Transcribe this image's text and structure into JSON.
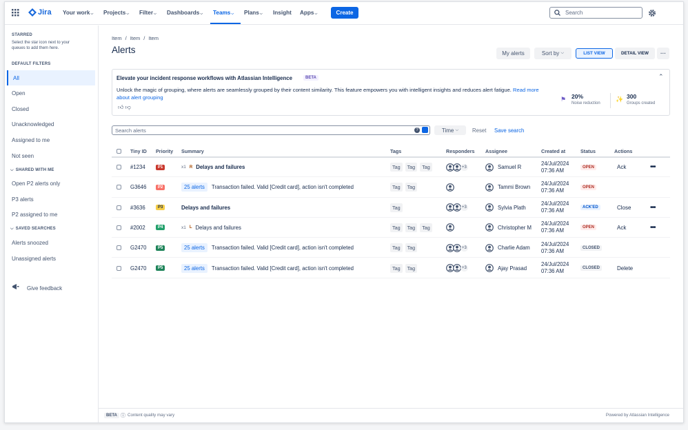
{
  "nav": {
    "product": "Jira",
    "items": [
      "Your work",
      "Projects",
      "Filter",
      "Dashboards",
      "Teams",
      "Plans",
      "Insight",
      "Apps"
    ],
    "create": "Create",
    "search": "Search"
  },
  "sidebar": {
    "starred": {
      "heading": "STARRED",
      "hint": "Select the star icon next to your queues to add them here."
    },
    "sections": [
      {
        "heading": "DEFAULT FILTERS",
        "items": [
          "All",
          "Open",
          "Closed",
          "Unacknowledged",
          "Assigned to me",
          "Not seen"
        ]
      },
      {
        "heading": "SHARED WITH ME",
        "items": [
          "Open P2 alerts only",
          "P3 alerts",
          "P2 assigned to me"
        ]
      },
      {
        "heading": "SAVED SEARCHES",
        "items": [
          "Alerts snoozed",
          "Unassigned alerts"
        ]
      }
    ],
    "feedback": "Give feedback"
  },
  "header": {
    "breadcrumbs": [
      "Item",
      "Item",
      "Item"
    ],
    "title": "Alerts",
    "buttons": {
      "my_alerts": "My alerts",
      "sort": "Sort by",
      "list_view": "LIST VIEW",
      "detail_view": "DETAIL VIEW"
    }
  },
  "banner": {
    "title": "Elevate your incident response workflows with Atlassian Intelligence",
    "badge": "BETA",
    "text": "Unlock the magic of grouping, where alerts are seamlessly grouped by their content similarity. This feature empowers you with intelligent insights and reduces alert fatigue.",
    "link": "Read more about alert grouping",
    "stats": [
      {
        "value": "20%",
        "label": "Noise reduction"
      },
      {
        "value": "300",
        "label": "Groups created"
      }
    ]
  },
  "filters": {
    "search": "Search alerts",
    "time": "Time",
    "reset": "Reset",
    "save": "Save search"
  },
  "table": {
    "columns": [
      "Tiny ID",
      "Priority",
      "Summary",
      "Tags",
      "Responders",
      "Assignee",
      "Created at",
      "Status",
      "Actions"
    ],
    "rows": [
      {
        "id": "#1234",
        "priority": {
          "text": "P1",
          "color": "#c9372c",
          "fg": "#ffffff"
        },
        "count": "x1",
        "initial": "R",
        "summary": "Delays and failures",
        "bold": true,
        "tags": [
          "Tag",
          "Tag",
          "Tag"
        ],
        "avatars": 2,
        "more": "+3",
        "assignee": "Samuel R",
        "date": "24/Jul/2024",
        "time": "07:36 AM",
        "status": {
          "text": "OPEN",
          "color": "#ae2e24",
          "bg": "#ffeceb"
        },
        "action": "Ack",
        "menu": true
      },
      {
        "id": "G3646",
        "priority": {
          "text": "P2",
          "color": "#f87168",
          "fg": "#ffffff"
        },
        "group": "25 alerts",
        "summary": "Transaction failed. Valid [Credit card], action isn't completed",
        "bold": false,
        "tags": [
          "Tag",
          "Tag"
        ],
        "avatars": 1,
        "assignee": "Tammi Brown",
        "date": "24/Jul/2024",
        "time": "07:36 AM",
        "status": {
          "text": "OPEN",
          "color": "#ae2e24",
          "bg": "#ffeceb"
        },
        "menu": false
      },
      {
        "id": "#3636",
        "priority": {
          "text": "P3",
          "color": "#f5cd47",
          "fg": "#172b4d"
        },
        "summary": "Delays and failures",
        "bold": true,
        "tags": [
          "Tag"
        ],
        "avatars": 2,
        "more": "+3",
        "assignee": "Sylvia Plath",
        "date": "24/Jul/2024",
        "time": "07:36 AM",
        "status": {
          "text": "ACK'ED",
          "color": "#0055cc",
          "bg": "#e9f2ff"
        },
        "action": "Close",
        "menu": true
      },
      {
        "id": "#2002",
        "priority": {
          "text": "P4",
          "color": "#22a06b",
          "fg": "#ffffff"
        },
        "count": "x1",
        "initial": "L",
        "summary": "Delays and failures",
        "bold": false,
        "tags": [
          "Tag",
          "Tag",
          "Tag"
        ],
        "avatars": 1,
        "assignee": "Christopher M",
        "date": "24/Jul/2024",
        "time": "07:36 AM",
        "status": {
          "text": "OPEN",
          "color": "#ae2e24",
          "bg": "#ffeceb"
        },
        "action": "Ack",
        "menu": true
      },
      {
        "id": "G2470",
        "priority": {
          "text": "P5",
          "color": "#1f845a",
          "fg": "#ffffff"
        },
        "group": "25 alerts",
        "summary": "Transaction failed. Valid [Credit card], action isn't completed",
        "bold": false,
        "tags": [
          "Tag",
          "Tag"
        ],
        "avatars": 2,
        "more": "+3",
        "assignee": "Charlie Adam",
        "date": "24/Jul/2024",
        "time": "07:36 AM",
        "status": {
          "text": "CLOSED",
          "color": "#44546f",
          "bg": "#f1f2f4"
        },
        "menu": false
      },
      {
        "id": "G2470",
        "priority": {
          "text": "P5",
          "color": "#1f845a",
          "fg": "#ffffff"
        },
        "group": "25 alerts",
        "summary": "Transaction failed. Valid [Credit card], action isn't completed",
        "bold": false,
        "tags": [
          "Tag",
          "Tag"
        ],
        "avatars": 2,
        "more": "+3",
        "assignee": "Ajay Prasad",
        "date": "24/Jul/2024",
        "time": "07:36 AM",
        "status": {
          "text": "CLOSED",
          "color": "#44546f",
          "bg": "#f1f2f4"
        },
        "action": "Delete",
        "menu": false
      }
    ]
  },
  "footer": {
    "badge": "BETA",
    "note": "Content quality may vary",
    "powered": "Powered by Atlassian Intelligence"
  }
}
